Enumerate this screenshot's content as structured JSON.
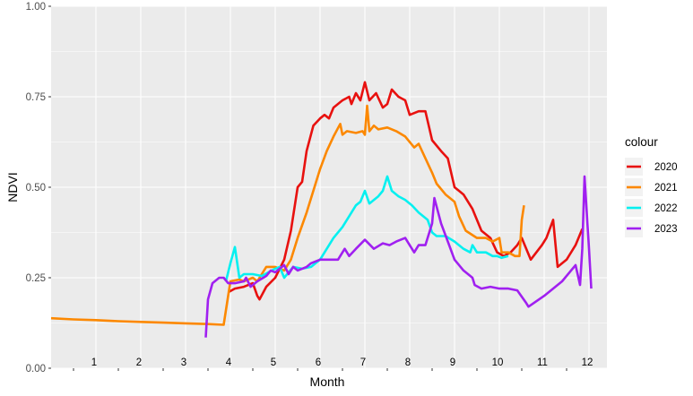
{
  "chart_data": {
    "type": "line",
    "xlabel": "Month",
    "ylabel": "NDVI",
    "xlim": [
      0,
      12.4
    ],
    "ylim": [
      0,
      1
    ],
    "x_tick_labels": [
      "1",
      "2",
      "3",
      "4",
      "5",
      "6",
      "7",
      "8",
      "9",
      "10",
      "11",
      "12"
    ],
    "y_ticks": [
      0,
      0.25,
      0.5,
      0.75,
      1
    ],
    "y_tick_labels": [
      "0.00",
      "0.25",
      "0.50",
      "0.75",
      "1.00"
    ],
    "grid": true,
    "legend": {
      "title": "colour",
      "placement": "right"
    },
    "series": [
      {
        "name": "2020",
        "color": "#e8110f",
        "points": [
          [
            3.95,
            0.21
          ],
          [
            4.1,
            0.22
          ],
          [
            4.3,
            0.225
          ],
          [
            4.5,
            0.235
          ],
          [
            4.6,
            0.2
          ],
          [
            4.65,
            0.19
          ],
          [
            4.8,
            0.225
          ],
          [
            5.0,
            0.25
          ],
          [
            5.2,
            0.3
          ],
          [
            5.35,
            0.38
          ],
          [
            5.5,
            0.5
          ],
          [
            5.6,
            0.515
          ],
          [
            5.7,
            0.6
          ],
          [
            5.85,
            0.67
          ],
          [
            6.0,
            0.69
          ],
          [
            6.1,
            0.7
          ],
          [
            6.2,
            0.69
          ],
          [
            6.3,
            0.72
          ],
          [
            6.5,
            0.74
          ],
          [
            6.65,
            0.75
          ],
          [
            6.7,
            0.73
          ],
          [
            6.8,
            0.76
          ],
          [
            6.9,
            0.74
          ],
          [
            7.0,
            0.79
          ],
          [
            7.1,
            0.74
          ],
          [
            7.25,
            0.76
          ],
          [
            7.4,
            0.72
          ],
          [
            7.5,
            0.73
          ],
          [
            7.6,
            0.77
          ],
          [
            7.75,
            0.75
          ],
          [
            7.9,
            0.74
          ],
          [
            8.0,
            0.7
          ],
          [
            8.2,
            0.71
          ],
          [
            8.35,
            0.71
          ],
          [
            8.5,
            0.63
          ],
          [
            8.7,
            0.6
          ],
          [
            8.85,
            0.58
          ],
          [
            9.0,
            0.5
          ],
          [
            9.1,
            0.49
          ],
          [
            9.2,
            0.48
          ],
          [
            9.4,
            0.44
          ],
          [
            9.6,
            0.38
          ],
          [
            9.8,
            0.36
          ],
          [
            9.95,
            0.32
          ],
          [
            10.1,
            0.31
          ],
          [
            10.25,
            0.32
          ],
          [
            10.4,
            0.34
          ],
          [
            10.5,
            0.36
          ],
          [
            10.7,
            0.3
          ],
          [
            10.95,
            0.34
          ],
          [
            11.05,
            0.36
          ],
          [
            11.2,
            0.41
          ],
          [
            11.3,
            0.28
          ],
          [
            11.5,
            0.3
          ],
          [
            11.7,
            0.34
          ],
          [
            11.85,
            0.385
          ]
        ]
      },
      {
        "name": "2021",
        "color": "#fc8800",
        "points": [
          [
            0.0,
            0.138
          ],
          [
            0.5,
            0.135
          ],
          [
            1.0,
            0.133
          ],
          [
            1.5,
            0.13
          ],
          [
            2.0,
            0.128
          ],
          [
            2.5,
            0.126
          ],
          [
            3.0,
            0.124
          ],
          [
            3.5,
            0.122
          ],
          [
            3.85,
            0.12
          ],
          [
            4.0,
            0.24
          ],
          [
            4.2,
            0.245
          ],
          [
            4.3,
            0.24
          ],
          [
            4.5,
            0.25
          ],
          [
            4.6,
            0.24
          ],
          [
            4.8,
            0.28
          ],
          [
            5.0,
            0.28
          ],
          [
            5.2,
            0.27
          ],
          [
            5.35,
            0.3
          ],
          [
            5.5,
            0.36
          ],
          [
            5.7,
            0.43
          ],
          [
            5.85,
            0.49
          ],
          [
            6.0,
            0.55
          ],
          [
            6.15,
            0.6
          ],
          [
            6.3,
            0.64
          ],
          [
            6.45,
            0.675
          ],
          [
            6.5,
            0.645
          ],
          [
            6.6,
            0.655
          ],
          [
            6.8,
            0.65
          ],
          [
            6.95,
            0.655
          ],
          [
            7.0,
            0.645
          ],
          [
            7.05,
            0.725
          ],
          [
            7.1,
            0.655
          ],
          [
            7.2,
            0.67
          ],
          [
            7.3,
            0.66
          ],
          [
            7.5,
            0.665
          ],
          [
            7.7,
            0.655
          ],
          [
            7.9,
            0.64
          ],
          [
            8.1,
            0.61
          ],
          [
            8.2,
            0.62
          ],
          [
            8.35,
            0.58
          ],
          [
            8.5,
            0.54
          ],
          [
            8.6,
            0.51
          ],
          [
            8.8,
            0.48
          ],
          [
            9.0,
            0.46
          ],
          [
            9.1,
            0.42
          ],
          [
            9.25,
            0.38
          ],
          [
            9.5,
            0.36
          ],
          [
            9.7,
            0.36
          ],
          [
            9.85,
            0.35
          ],
          [
            10.0,
            0.36
          ],
          [
            10.05,
            0.32
          ],
          [
            10.2,
            0.32
          ],
          [
            10.35,
            0.31
          ],
          [
            10.45,
            0.31
          ],
          [
            10.5,
            0.41
          ],
          [
            10.55,
            0.45
          ]
        ]
      },
      {
        "name": "2022",
        "color": "#06f0f0",
        "points": [
          [
            3.9,
            0.24
          ],
          [
            4.0,
            0.29
          ],
          [
            4.1,
            0.335
          ],
          [
            4.2,
            0.25
          ],
          [
            4.3,
            0.26
          ],
          [
            4.5,
            0.26
          ],
          [
            4.7,
            0.255
          ],
          [
            4.85,
            0.265
          ],
          [
            5.0,
            0.275
          ],
          [
            5.1,
            0.28
          ],
          [
            5.2,
            0.25
          ],
          [
            5.4,
            0.28
          ],
          [
            5.6,
            0.275
          ],
          [
            5.8,
            0.28
          ],
          [
            6.0,
            0.3
          ],
          [
            6.15,
            0.33
          ],
          [
            6.3,
            0.36
          ],
          [
            6.5,
            0.39
          ],
          [
            6.65,
            0.42
          ],
          [
            6.8,
            0.45
          ],
          [
            6.9,
            0.46
          ],
          [
            7.0,
            0.49
          ],
          [
            7.1,
            0.455
          ],
          [
            7.3,
            0.475
          ],
          [
            7.4,
            0.49
          ],
          [
            7.5,
            0.53
          ],
          [
            7.6,
            0.49
          ],
          [
            7.75,
            0.475
          ],
          [
            7.9,
            0.465
          ],
          [
            8.05,
            0.45
          ],
          [
            8.2,
            0.43
          ],
          [
            8.4,
            0.41
          ],
          [
            8.5,
            0.375
          ],
          [
            8.6,
            0.365
          ],
          [
            8.8,
            0.365
          ],
          [
            9.0,
            0.35
          ],
          [
            9.2,
            0.33
          ],
          [
            9.35,
            0.32
          ],
          [
            9.4,
            0.34
          ],
          [
            9.5,
            0.32
          ],
          [
            9.7,
            0.32
          ],
          [
            9.85,
            0.31
          ],
          [
            9.95,
            0.31
          ],
          [
            10.05,
            0.305
          ],
          [
            10.2,
            0.31
          ]
        ]
      },
      {
        "name": "2023",
        "color": "#a020f0",
        "points": [
          [
            3.45,
            0.085
          ],
          [
            3.5,
            0.19
          ],
          [
            3.6,
            0.235
          ],
          [
            3.75,
            0.25
          ],
          [
            3.85,
            0.25
          ],
          [
            3.95,
            0.235
          ],
          [
            4.1,
            0.235
          ],
          [
            4.3,
            0.24
          ],
          [
            4.35,
            0.25
          ],
          [
            4.45,
            0.225
          ],
          [
            4.6,
            0.24
          ],
          [
            4.8,
            0.255
          ],
          [
            4.9,
            0.27
          ],
          [
            5.0,
            0.265
          ],
          [
            5.15,
            0.28
          ],
          [
            5.2,
            0.285
          ],
          [
            5.3,
            0.26
          ],
          [
            5.4,
            0.28
          ],
          [
            5.5,
            0.27
          ],
          [
            5.7,
            0.28
          ],
          [
            5.8,
            0.29
          ],
          [
            6.0,
            0.3
          ],
          [
            6.2,
            0.3
          ],
          [
            6.4,
            0.3
          ],
          [
            6.55,
            0.33
          ],
          [
            6.65,
            0.31
          ],
          [
            6.8,
            0.33
          ],
          [
            7.0,
            0.355
          ],
          [
            7.2,
            0.33
          ],
          [
            7.4,
            0.345
          ],
          [
            7.55,
            0.34
          ],
          [
            7.7,
            0.35
          ],
          [
            7.9,
            0.36
          ],
          [
            8.05,
            0.33
          ],
          [
            8.1,
            0.32
          ],
          [
            8.2,
            0.34
          ],
          [
            8.35,
            0.34
          ],
          [
            8.5,
            0.4
          ],
          [
            8.55,
            0.47
          ],
          [
            8.7,
            0.4
          ],
          [
            8.85,
            0.35
          ],
          [
            9.0,
            0.3
          ],
          [
            9.2,
            0.27
          ],
          [
            9.4,
            0.25
          ],
          [
            9.45,
            0.23
          ],
          [
            9.6,
            0.22
          ],
          [
            9.8,
            0.225
          ],
          [
            10.0,
            0.22
          ],
          [
            10.2,
            0.22
          ],
          [
            10.4,
            0.215
          ],
          [
            10.6,
            0.18
          ],
          [
            10.65,
            0.17
          ],
          [
            11.0,
            0.2
          ],
          [
            11.4,
            0.24
          ],
          [
            11.7,
            0.285
          ],
          [
            11.8,
            0.23
          ],
          [
            11.85,
            0.33
          ],
          [
            11.9,
            0.53
          ],
          [
            12.0,
            0.33
          ],
          [
            12.05,
            0.22
          ]
        ]
      }
    ]
  }
}
